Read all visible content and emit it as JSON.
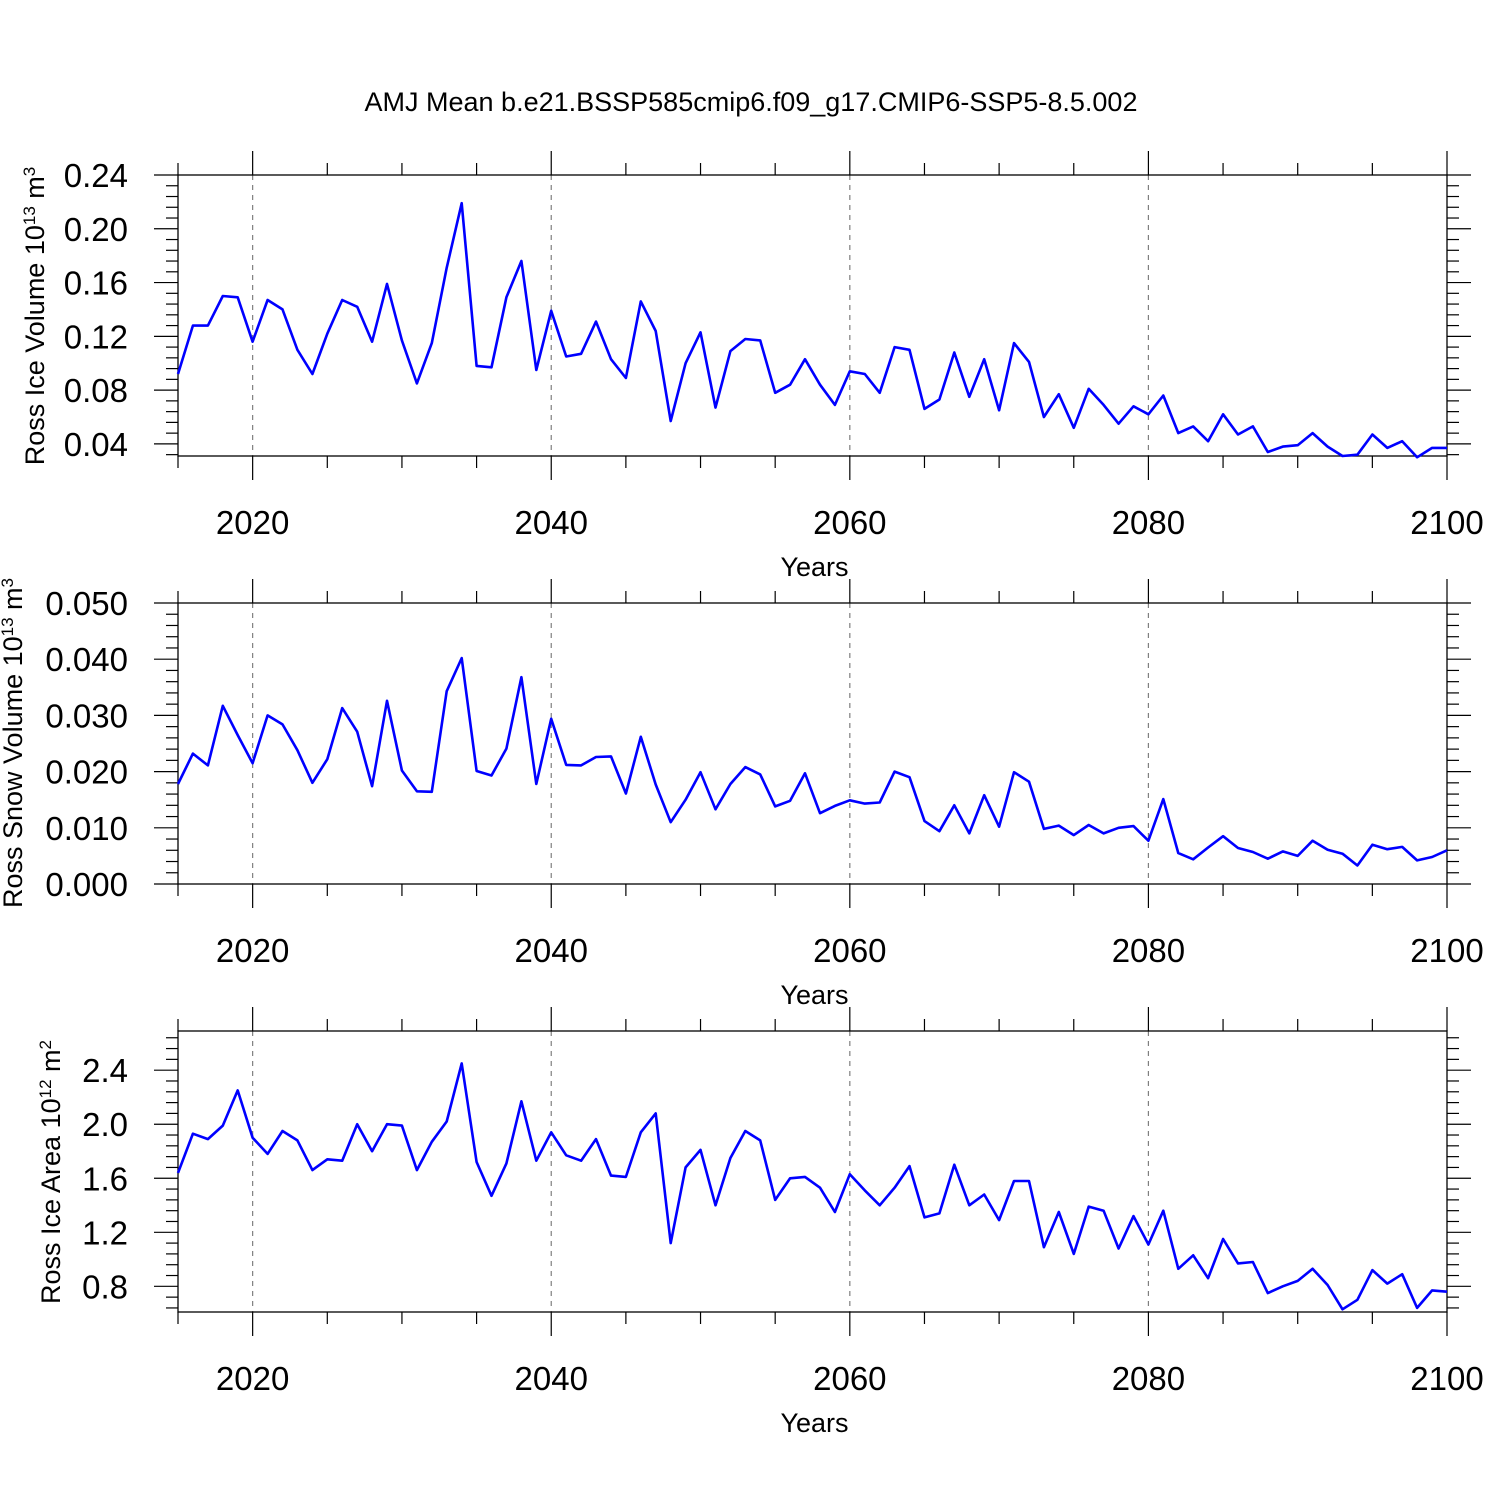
{
  "title": "AMJ Mean b.e21.BSSP585cmip6.f09_g17.CMIP6-SSP5-8.5.002",
  "colors": {
    "line": "#0000ff",
    "axis": "#000000",
    "grid": "#7f7f7f",
    "background": "#ffffff"
  },
  "chart_data": [
    {
      "type": "line",
      "ylabel": "Ross Ice Volume 10",
      "ylabel_exp": "13",
      "ylabel_unit": " m",
      "ylabel_unit_exp": "3",
      "xlabel": "Years",
      "xlim": [
        2015,
        2100
      ],
      "ylim": [
        0.031,
        0.24
      ],
      "xticks": [
        2020,
        2040,
        2060,
        2080,
        2100
      ],
      "xtick_labels": [
        "2020",
        "2040",
        "2060",
        "2080",
        "2100"
      ],
      "yticks": [
        0.04,
        0.08,
        0.12,
        0.16,
        0.2,
        0.24
      ],
      "ytick_labels": [
        "0.04",
        "0.08",
        "0.12",
        "0.16",
        "0.20",
        "0.24"
      ],
      "grid": "vertical dashed at major x ticks",
      "x_start": 2015,
      "values": [
        0.092,
        0.128,
        0.128,
        0.15,
        0.149,
        0.116,
        0.147,
        0.14,
        0.11,
        0.092,
        0.122,
        0.147,
        0.142,
        0.116,
        0.159,
        0.117,
        0.085,
        0.115,
        0.171,
        0.219,
        0.098,
        0.097,
        0.149,
        0.176,
        0.095,
        0.139,
        0.105,
        0.107,
        0.131,
        0.103,
        0.089,
        0.146,
        0.124,
        0.057,
        0.1,
        0.123,
        0.067,
        0.109,
        0.118,
        0.117,
        0.078,
        0.084,
        0.103,
        0.084,
        0.069,
        0.094,
        0.092,
        0.078,
        0.112,
        0.11,
        0.066,
        0.073,
        0.108,
        0.075,
        0.103,
        0.065,
        0.115,
        0.101,
        0.06,
        0.077,
        0.052,
        0.081,
        0.069,
        0.055,
        0.068,
        0.062,
        0.076,
        0.048,
        0.053,
        0.042,
        0.062,
        0.047,
        0.053,
        0.034,
        0.038,
        0.039,
        0.048,
        0.038,
        0.031,
        0.032,
        0.047,
        0.037,
        0.042,
        0.03,
        0.037,
        0.037
      ]
    },
    {
      "type": "line",
      "ylabel": "Ross Snow Volume 10",
      "ylabel_exp": "13",
      "ylabel_unit": " m",
      "ylabel_unit_exp": "3",
      "xlabel": "Years",
      "xlim": [
        2015,
        2100
      ],
      "ylim": [
        0.0,
        0.05
      ],
      "xticks": [
        2020,
        2040,
        2060,
        2080,
        2100
      ],
      "xtick_labels": [
        "2020",
        "2040",
        "2060",
        "2080",
        "2100"
      ],
      "yticks": [
        0.0,
        0.01,
        0.02,
        0.03,
        0.04,
        0.05
      ],
      "ytick_labels": [
        "0.000",
        "0.010",
        "0.020",
        "0.030",
        "0.040",
        "0.050"
      ],
      "grid": "vertical dashed at major x ticks",
      "x_start": 2015,
      "values": [
        0.0178,
        0.0232,
        0.0211,
        0.0317,
        0.0265,
        0.0215,
        0.03,
        0.0284,
        0.0238,
        0.018,
        0.0222,
        0.0313,
        0.0271,
        0.0174,
        0.0326,
        0.0202,
        0.0165,
        0.0164,
        0.0343,
        0.0402,
        0.0201,
        0.0193,
        0.0241,
        0.0368,
        0.0178,
        0.0294,
        0.0212,
        0.0211,
        0.0226,
        0.0227,
        0.0161,
        0.0262,
        0.0177,
        0.011,
        0.015,
        0.0199,
        0.0133,
        0.0178,
        0.0208,
        0.0195,
        0.0138,
        0.0148,
        0.0197,
        0.0126,
        0.0139,
        0.0149,
        0.0143,
        0.0145,
        0.02,
        0.019,
        0.0112,
        0.0094,
        0.014,
        0.009,
        0.0158,
        0.0102,
        0.0199,
        0.0182,
        0.0098,
        0.0104,
        0.0087,
        0.0105,
        0.009,
        0.01,
        0.0103,
        0.0077,
        0.0151,
        0.0055,
        0.0044,
        0.0065,
        0.0085,
        0.0064,
        0.0057,
        0.0045,
        0.0058,
        0.005,
        0.0077,
        0.0061,
        0.0054,
        0.0033,
        0.007,
        0.0062,
        0.0066,
        0.0042,
        0.0048,
        0.006
      ]
    },
    {
      "type": "line",
      "ylabel": "Ross Ice Area 10",
      "ylabel_exp": "12",
      "ylabel_unit": " m",
      "ylabel_unit_exp": "2",
      "xlabel": "Years",
      "xlim": [
        2015,
        2100
      ],
      "ylim": [
        0.61,
        2.69
      ],
      "xticks": [
        2020,
        2040,
        2060,
        2080,
        2100
      ],
      "xtick_labels": [
        "2020",
        "2040",
        "2060",
        "2080",
        "2100"
      ],
      "yticks": [
        0.8,
        1.2,
        1.6,
        2.0,
        2.4
      ],
      "ytick_labels": [
        "0.8",
        "1.2",
        "1.6",
        "2.0",
        "2.4"
      ],
      "grid": "vertical dashed at major x ticks",
      "x_start": 2015,
      "values": [
        1.64,
        1.93,
        1.89,
        1.99,
        2.25,
        1.9,
        1.78,
        1.95,
        1.88,
        1.66,
        1.74,
        1.73,
        2.0,
        1.8,
        2.0,
        1.99,
        1.66,
        1.87,
        2.02,
        2.45,
        1.72,
        1.47,
        1.71,
        2.17,
        1.73,
        1.94,
        1.77,
        1.73,
        1.89,
        1.62,
        1.61,
        1.94,
        2.08,
        1.12,
        1.68,
        1.81,
        1.4,
        1.75,
        1.95,
        1.88,
        1.44,
        1.6,
        1.61,
        1.53,
        1.35,
        1.63,
        1.51,
        1.4,
        1.53,
        1.69,
        1.31,
        1.34,
        1.7,
        1.4,
        1.48,
        1.29,
        1.58,
        1.58,
        1.09,
        1.35,
        1.04,
        1.39,
        1.36,
        1.08,
        1.32,
        1.11,
        1.36,
        0.93,
        1.03,
        0.86,
        1.15,
        0.97,
        0.98,
        0.75,
        0.8,
        0.84,
        0.93,
        0.81,
        0.63,
        0.7,
        0.92,
        0.82,
        0.89,
        0.64,
        0.77,
        0.76
      ]
    }
  ]
}
